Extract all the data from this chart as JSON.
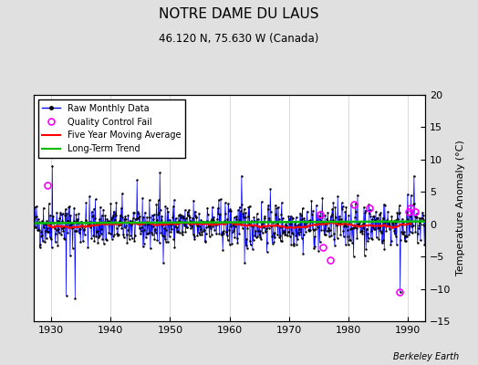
{
  "title": "NOTRE DAME DU LAUS",
  "subtitle": "46.120 N, 75.630 W (Canada)",
  "ylabel": "Temperature Anomaly (°C)",
  "credit": "Berkeley Earth",
  "bg_color": "#e0e0e0",
  "plot_bg_color": "#ffffff",
  "ylim": [
    -15,
    20
  ],
  "yticks": [
    -15,
    -10,
    -5,
    0,
    5,
    10,
    15,
    20
  ],
  "xlim": [
    1927,
    1993
  ],
  "xticks": [
    1930,
    1940,
    1950,
    1960,
    1970,
    1980,
    1990
  ],
  "seed": 42,
  "start_year": 1927,
  "end_year": 1993,
  "monthly_mean": -0.1,
  "monthly_std": 1.8,
  "ma_color": "#ff0000",
  "trend_color": "#00bb00",
  "raw_color": "#0000ff",
  "dot_color": "#000000",
  "qc_color": "#ff00ff",
  "qc_points": [
    [
      1929.4,
      6.0
    ],
    [
      1975.3,
      1.5
    ],
    [
      1975.7,
      -3.5
    ],
    [
      1977.0,
      -5.5
    ],
    [
      1981.0,
      3.0
    ],
    [
      1983.5,
      2.5
    ],
    [
      1988.7,
      -10.5
    ],
    [
      1990.2,
      2.0
    ],
    [
      1990.5,
      2.5
    ],
    [
      1991.3,
      2.0
    ]
  ],
  "title_fontsize": 11,
  "subtitle_fontsize": 8.5,
  "tick_fontsize": 8,
  "ylabel_fontsize": 8,
  "legend_fontsize": 7,
  "credit_fontsize": 7
}
